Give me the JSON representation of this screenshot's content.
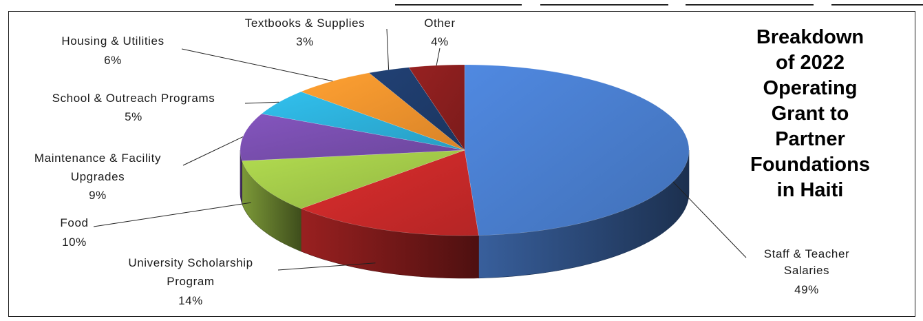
{
  "chart_data": {
    "type": "pie",
    "title_lines": [
      "Breakdown",
      "of 2022",
      "Operating",
      "Grant to",
      "Partner",
      "Foundations",
      "in Haiti"
    ],
    "slices": [
      {
        "label": "Staff & Teacher Salaries",
        "value": 49,
        "value_text": "49%",
        "color": "#4a7fd0"
      },
      {
        "label": "University Scholarship Program",
        "value": 14,
        "value_text": "14%",
        "color": "#cc2a2a"
      },
      {
        "label": "Food",
        "value": 10,
        "value_text": "10%",
        "color": "#a5cc4a"
      },
      {
        "label": "Maintenance & Facility Upgrades",
        "value": 9,
        "value_text": "9%",
        "color": "#7a4fb0"
      },
      {
        "label": "School & Outreach Programs",
        "value": 5,
        "value_text": "5%",
        "color": "#2db2dc"
      },
      {
        "label": "Housing & Utilities",
        "value": 6,
        "value_text": "6%",
        "color": "#f5952e"
      },
      {
        "label": "Textbooks & Supplies",
        "value": 3,
        "value_text": "3%",
        "color": "#1f3c6c"
      },
      {
        "label": "Other",
        "value": 4,
        "value_text": "4%",
        "color": "#8c1f1f"
      }
    ],
    "style": "3d-pie",
    "legend": "none",
    "data_labels": "outside-with-leader-lines"
  }
}
